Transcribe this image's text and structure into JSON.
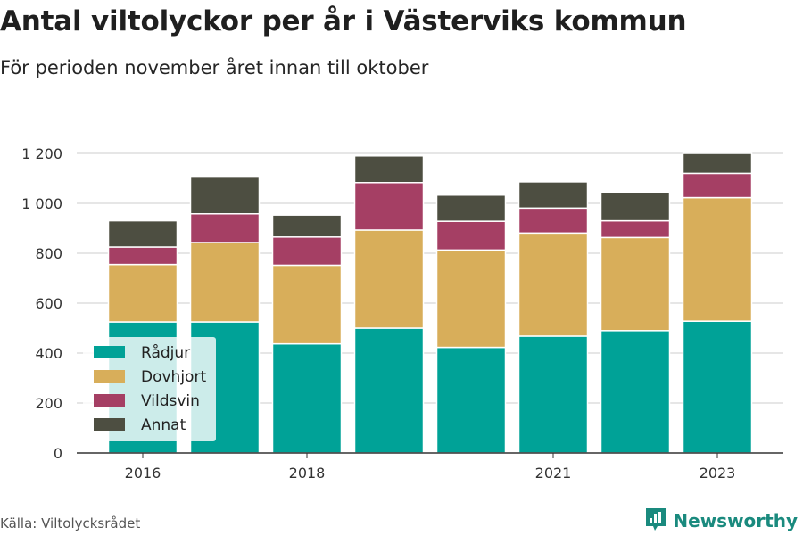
{
  "header": {
    "title": "Antal viltolyckor per år i Västerviks kommun",
    "subtitle": "För perioden november året innan till oktober"
  },
  "footer": {
    "source": "Källa: Viltolycksrådet",
    "brand": "Newsworthy",
    "brand_icon": "newsworthy-logo-icon"
  },
  "colors": {
    "Rådjur": "#00a297",
    "Dovhjort": "#d8ae5a",
    "Vildsvin": "#a53f64",
    "Annat": "#4d4e41",
    "grid": "#dedede",
    "axis": "#333333"
  },
  "chart_data": {
    "type": "bar",
    "stacked": true,
    "categories": [
      "2016",
      "2017",
      "2018",
      "2019",
      "2020",
      "2021",
      "2022",
      "2023"
    ],
    "x_tick_labels": [
      "2016",
      "",
      "2018",
      "",
      "",
      "2021",
      "",
      "2023"
    ],
    "series": [
      {
        "name": "Rådjur",
        "values": [
          525,
          525,
          437,
          500,
          423,
          468,
          490,
          528
        ]
      },
      {
        "name": "Dovhjort",
        "values": [
          230,
          318,
          315,
          393,
          390,
          413,
          373,
          495
        ]
      },
      {
        "name": "Vildsvin",
        "values": [
          70,
          115,
          113,
          190,
          115,
          100,
          67,
          97
        ]
      },
      {
        "name": "Annat",
        "values": [
          105,
          147,
          88,
          107,
          105,
          105,
          112,
          80
        ]
      }
    ],
    "y_ticks": [
      0,
      200,
      400,
      600,
      800,
      1000,
      1200
    ],
    "y_tick_labels": [
      "0",
      "200",
      "400",
      "600",
      "800",
      "1 000",
      "1 200"
    ],
    "ylim": [
      0,
      1200
    ],
    "grid": true,
    "legend_position": "bottom-left"
  }
}
